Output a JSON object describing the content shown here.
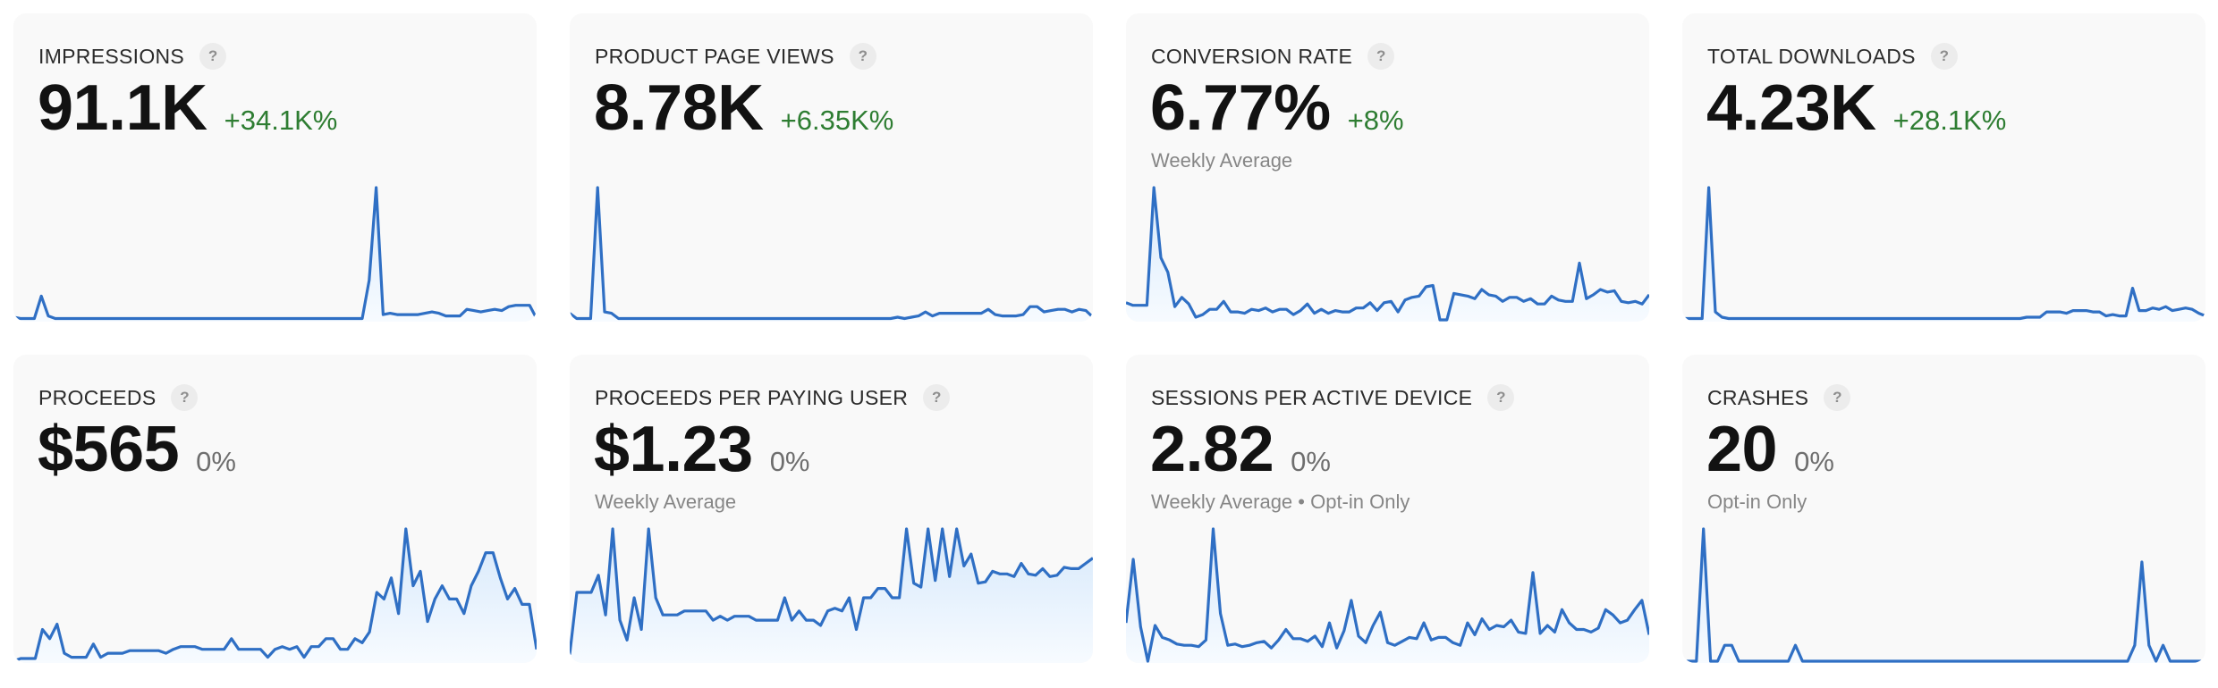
{
  "colors": {
    "line": "#2f6fc4",
    "fill_top": "#d6e8fb",
    "fill_bottom": "#f7fbff",
    "positive": "#2e7d32",
    "neutral": "#6e6e6e",
    "card_bg": "#f9f9f9"
  },
  "help_icon_glyph": "?",
  "cards": [
    {
      "label": "IMPRESSIONS",
      "icon": "help-icon",
      "value": "91.1K",
      "delta": "+34.1K%",
      "delta_type": "pos",
      "subtitle": "",
      "series": [
        2,
        1,
        1,
        1,
        18,
        3,
        1,
        1,
        1,
        1,
        1,
        1,
        1,
        1,
        1,
        1,
        1,
        1,
        1,
        1,
        1,
        1,
        1,
        1,
        1,
        1,
        1,
        1,
        1,
        1,
        1,
        1,
        1,
        1,
        1,
        1,
        1,
        1,
        1,
        1,
        1,
        1,
        1,
        1,
        1,
        1,
        1,
        1,
        1,
        1,
        1,
        30,
        100,
        4,
        5,
        4,
        4,
        4,
        4,
        5,
        6,
        5,
        3,
        3,
        3,
        8,
        7,
        6,
        7,
        8,
        7,
        10,
        11,
        11,
        11,
        1
      ]
    },
    {
      "label": "PRODUCT PAGE VIEWS",
      "icon": "help-icon",
      "value": "8.78K",
      "delta": "+6.35K%",
      "delta_type": "pos",
      "subtitle": "",
      "series": [
        5,
        1,
        1,
        1,
        100,
        6,
        5,
        1,
        1,
        1,
        1,
        1,
        1,
        1,
        1,
        1,
        1,
        1,
        1,
        1,
        1,
        1,
        1,
        1,
        1,
        1,
        1,
        1,
        1,
        1,
        1,
        1,
        1,
        1,
        1,
        1,
        1,
        1,
        1,
        1,
        1,
        1,
        1,
        1,
        1,
        1,
        1,
        2,
        1,
        2,
        3,
        6,
        3,
        5,
        5,
        5,
        5,
        5,
        5,
        5,
        8,
        4,
        3,
        3,
        3,
        4,
        10,
        10,
        6,
        7,
        8,
        8,
        6,
        8,
        7,
        2
      ]
    },
    {
      "label": "CONVERSION RATE",
      "icon": "help-icon",
      "value": "6.77%",
      "delta": "+8%",
      "delta_type": "pos",
      "subtitle": "Weekly Average",
      "series": [
        13,
        11,
        11,
        11,
        100,
        47,
        36,
        10,
        17,
        12,
        2,
        4,
        8,
        8,
        14,
        6,
        6,
        5,
        8,
        7,
        9,
        6,
        8,
        8,
        4,
        7,
        12,
        5,
        8,
        5,
        7,
        6,
        6,
        9,
        9,
        13,
        7,
        13,
        14,
        6,
        15,
        17,
        18,
        25,
        26,
        0,
        0,
        20,
        19,
        18,
        16,
        23,
        19,
        18,
        14,
        17,
        17,
        14,
        16,
        12,
        12,
        18,
        15,
        14,
        14,
        43,
        16,
        19,
        23,
        21,
        22,
        14,
        13,
        14,
        12,
        19
      ]
    },
    {
      "label": "TOTAL DOWNLOADS",
      "icon": "help-icon",
      "value": "4.23K",
      "delta": "+28.1K%",
      "delta_type": "pos",
      "subtitle": "",
      "series": [
        1,
        1,
        1,
        1,
        100,
        6,
        2,
        1,
        1,
        1,
        1,
        1,
        1,
        1,
        1,
        1,
        1,
        1,
        1,
        1,
        1,
        1,
        1,
        1,
        1,
        1,
        1,
        1,
        1,
        1,
        1,
        1,
        1,
        1,
        1,
        1,
        1,
        1,
        1,
        1,
        1,
        1,
        1,
        1,
        1,
        1,
        1,
        1,
        1,
        1,
        1,
        1,
        2,
        2,
        2,
        6,
        6,
        6,
        5,
        7,
        7,
        7,
        6,
        6,
        3,
        4,
        3,
        3,
        24,
        7,
        7,
        9,
        8,
        10,
        7,
        8,
        9,
        8,
        5,
        3
      ]
    },
    {
      "label": "PROCEEDS",
      "icon": "help-icon",
      "value": "$565",
      "delta": "0%",
      "delta_type": "neu",
      "subtitle": "",
      "series": [
        0,
        2,
        2,
        2,
        24,
        17,
        28,
        6,
        3,
        3,
        3,
        13,
        3,
        6,
        6,
        6,
        8,
        8,
        8,
        8,
        8,
        6,
        9,
        11,
        11,
        11,
        9,
        9,
        9,
        9,
        17,
        9,
        9,
        9,
        9,
        3,
        9,
        11,
        9,
        11,
        3,
        11,
        11,
        17,
        17,
        9,
        9,
        17,
        14,
        22,
        52,
        47,
        63,
        36,
        100,
        57,
        68,
        30,
        47,
        57,
        47,
        47,
        36,
        57,
        68,
        82,
        82,
        63,
        47,
        55,
        43,
        43,
        9
      ]
    },
    {
      "label": "PROCEEDS PER PAYING USER",
      "icon": "help-icon",
      "value": "$1.23",
      "delta": "0%",
      "delta_type": "neu",
      "subtitle": "Weekly Average",
      "series": [
        5,
        52,
        52,
        52,
        65,
        35,
        100,
        31,
        16,
        48,
        24,
        100,
        48,
        35,
        35,
        35,
        38,
        38,
        38,
        38,
        31,
        34,
        31,
        34,
        34,
        34,
        31,
        31,
        31,
        31,
        48,
        31,
        38,
        31,
        31,
        27,
        38,
        40,
        38,
        48,
        24,
        48,
        48,
        55,
        55,
        48,
        48,
        100,
        59,
        56,
        100,
        61,
        100,
        64,
        100,
        72,
        81,
        59,
        60,
        68,
        66,
        66,
        64,
        74,
        66,
        65,
        70,
        64,
        65,
        71,
        70,
        70,
        74,
        78
      ]
    },
    {
      "label": "SESSIONS PER ACTIVE DEVICE",
      "icon": "help-icon",
      "value": "2.82",
      "delta": "0%",
      "delta_type": "neu",
      "subtitle": "Weekly Average • Opt-in Only",
      "series": [
        29,
        77,
        26,
        0,
        27,
        18,
        16,
        13,
        12,
        12,
        11,
        16,
        100,
        36,
        12,
        13,
        11,
        12,
        14,
        15,
        10,
        16,
        24,
        17,
        17,
        15,
        19,
        11,
        29,
        10,
        23,
        46,
        19,
        14,
        27,
        37,
        14,
        12,
        15,
        18,
        17,
        29,
        16,
        18,
        18,
        14,
        12,
        29,
        20,
        32,
        24,
        27,
        26,
        31,
        22,
        21,
        67,
        21,
        27,
        22,
        39,
        29,
        24,
        24,
        22,
        25,
        39,
        35,
        29,
        31,
        39,
        46,
        20
      ]
    },
    {
      "label": "CRASHES",
      "icon": "help-icon",
      "value": "20",
      "delta": "0%",
      "delta_type": "neu",
      "subtitle": "Opt-in Only",
      "series": [
        0,
        0,
        0,
        100,
        0,
        0,
        12,
        12,
        0,
        0,
        0,
        0,
        0,
        0,
        0,
        0,
        12,
        0,
        0,
        0,
        0,
        0,
        0,
        0,
        0,
        0,
        0,
        0,
        0,
        0,
        0,
        0,
        0,
        0,
        0,
        0,
        0,
        0,
        0,
        0,
        0,
        0,
        0,
        0,
        0,
        0,
        0,
        0,
        0,
        0,
        0,
        0,
        0,
        0,
        0,
        0,
        0,
        0,
        0,
        0,
        0,
        0,
        0,
        0,
        12,
        75,
        12,
        0,
        12,
        0,
        0,
        0,
        0,
        0,
        0
      ]
    }
  ]
}
